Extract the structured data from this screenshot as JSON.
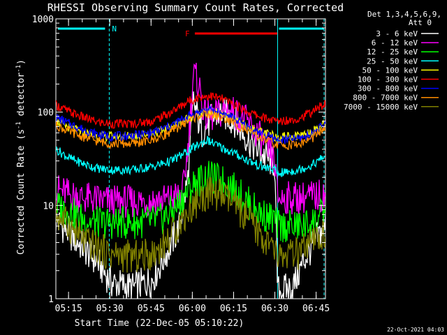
{
  "chart_data": {
    "type": "line",
    "title": "RHESSI Observing Summary Count Rates, Corrected",
    "xlabel": "Start Time (22-Dec-05 05:10:22)",
    "ylabel_main": "Corrected Count Rate (s",
    "ylabel_sup1": "-1",
    "ylabel_mid": " detector",
    "ylabel_sup2": "-1",
    "ylabel_end": ")",
    "y_scale": "log",
    "ylim": [
      1,
      1000
    ],
    "xlim_minutes": [
      0,
      98
    ],
    "x_tick_labels": [
      "05:15",
      "05:30",
      "05:45",
      "06:00",
      "06:15",
      "06:30",
      "06:45"
    ],
    "x_tick_minutes": [
      4.6,
      19.6,
      34.6,
      49.6,
      64.6,
      79.6,
      94.6
    ],
    "y_tick_labels": [
      "1",
      "10",
      "100",
      "1000"
    ],
    "y_tick_values": [
      1,
      10,
      100,
      1000
    ],
    "legend_header": [
      "Det 1,3,4,5,6,9,",
      "Att 0"
    ],
    "legend_placement": "right",
    "annotations": {
      "night_label": "N",
      "flare_label": "F",
      "footer_date": "22-Oct-2021 04:03"
    },
    "night_intervals_minutes": [
      [
        0,
        19.4
      ],
      [
        80.6,
        98
      ]
    ],
    "flare_interval_minutes": [
      50,
      80
    ],
    "series": [
      {
        "name": "3 - 6 keV",
        "color": "#ffffff",
        "points": [
          [
            0,
            7
          ],
          [
            5,
            5
          ],
          [
            10,
            3.5
          ],
          [
            15,
            2.5
          ],
          [
            20,
            1.5
          ],
          [
            28,
            1.3
          ],
          [
            35,
            1.6
          ],
          [
            40,
            3
          ],
          [
            45,
            6
          ],
          [
            48,
            20
          ],
          [
            50,
            130
          ],
          [
            53,
            60
          ],
          [
            56,
            80
          ],
          [
            60,
            100
          ],
          [
            65,
            80
          ],
          [
            70,
            50
          ],
          [
            75,
            35
          ],
          [
            79.5,
            28
          ],
          [
            80.6,
            1.2
          ],
          [
            86,
            1.3
          ],
          [
            90,
            2.5
          ],
          [
            95,
            4.5
          ],
          [
            98,
            6
          ]
        ]
      },
      {
        "name": "6 - 12 keV",
        "color": "#ff00ff",
        "points": [
          [
            0,
            15
          ],
          [
            5,
            13
          ],
          [
            10,
            12
          ],
          [
            20,
            11
          ],
          [
            30,
            11
          ],
          [
            40,
            11.5
          ],
          [
            46,
            13
          ],
          [
            48,
            40
          ],
          [
            50,
            260
          ],
          [
            52,
            200
          ],
          [
            54,
            90
          ],
          [
            58,
            90
          ],
          [
            62,
            110
          ],
          [
            66,
            95
          ],
          [
            70,
            75
          ],
          [
            75,
            50
          ],
          [
            79.5,
            30
          ],
          [
            80.6,
            12
          ],
          [
            88,
            12
          ],
          [
            95,
            12.5
          ],
          [
            98,
            13
          ]
        ]
      },
      {
        "name": "12 - 25 keV",
        "color": "#00ff00",
        "points": [
          [
            0,
            10
          ],
          [
            5,
            8.5
          ],
          [
            10,
            7
          ],
          [
            15,
            6.5
          ],
          [
            20,
            6.5
          ],
          [
            30,
            6.5
          ],
          [
            38,
            7
          ],
          [
            43,
            9
          ],
          [
            47,
            13
          ],
          [
            51,
            18
          ],
          [
            55,
            20
          ],
          [
            59,
            19
          ],
          [
            63,
            17
          ],
          [
            67,
            13
          ],
          [
            71,
            10
          ],
          [
            75,
            8
          ],
          [
            79.5,
            7
          ],
          [
            80.6,
            6
          ],
          [
            90,
            6
          ],
          [
            95,
            7
          ],
          [
            98,
            9
          ]
        ]
      },
      {
        "name": "25 - 50 keV",
        "color": "#00ffff",
        "points": [
          [
            0,
            40
          ],
          [
            5,
            32
          ],
          [
            10,
            28
          ],
          [
            15,
            25
          ],
          [
            20,
            24
          ],
          [
            28,
            24
          ],
          [
            35,
            26
          ],
          [
            42,
            30
          ],
          [
            48,
            38
          ],
          [
            52,
            45
          ],
          [
            55,
            50
          ],
          [
            60,
            42
          ],
          [
            65,
            36
          ],
          [
            70,
            30
          ],
          [
            75,
            26
          ],
          [
            79.5,
            24
          ],
          [
            80.6,
            22
          ],
          [
            88,
            24
          ],
          [
            93,
            27
          ],
          [
            98,
            34
          ]
        ]
      },
      {
        "name": "50 - 100 keV",
        "color": "#ffff00",
        "points": [
          [
            0,
            80
          ],
          [
            5,
            68
          ],
          [
            10,
            60
          ],
          [
            15,
            55
          ],
          [
            20,
            55
          ],
          [
            30,
            56
          ],
          [
            38,
            62
          ],
          [
            44,
            75
          ],
          [
            50,
            92
          ],
          [
            55,
            100
          ],
          [
            60,
            95
          ],
          [
            65,
            82
          ],
          [
            70,
            68
          ],
          [
            75,
            60
          ],
          [
            79.5,
            55
          ],
          [
            80.6,
            55
          ],
          [
            88,
            56
          ],
          [
            93,
            62
          ],
          [
            98,
            75
          ]
        ]
      },
      {
        "name": "100 - 300 keV",
        "color": "#ff0000",
        "points": [
          [
            0,
            120
          ],
          [
            5,
            100
          ],
          [
            10,
            88
          ],
          [
            15,
            78
          ],
          [
            20,
            75
          ],
          [
            28,
            75
          ],
          [
            35,
            80
          ],
          [
            42,
            100
          ],
          [
            48,
            130
          ],
          [
            52,
            145
          ],
          [
            56,
            150
          ],
          [
            60,
            140
          ],
          [
            65,
            120
          ],
          [
            70,
            100
          ],
          [
            75,
            88
          ],
          [
            79.5,
            80
          ],
          [
            80.6,
            80
          ],
          [
            88,
            85
          ],
          [
            93,
            100
          ],
          [
            98,
            125
          ]
        ]
      },
      {
        "name": "300 - 800 keV",
        "color": "#0000ff",
        "points": [
          [
            0,
            88
          ],
          [
            5,
            75
          ],
          [
            10,
            65
          ],
          [
            15,
            58
          ],
          [
            20,
            55
          ],
          [
            28,
            56
          ],
          [
            35,
            60
          ],
          [
            42,
            72
          ],
          [
            48,
            90
          ],
          [
            52,
            100
          ],
          [
            56,
            105
          ],
          [
            60,
            98
          ],
          [
            65,
            85
          ],
          [
            70,
            68
          ],
          [
            75,
            58
          ],
          [
            79.5,
            52
          ],
          [
            80.6,
            50
          ],
          [
            88,
            52
          ],
          [
            93,
            58
          ],
          [
            98,
            75
          ]
        ]
      },
      {
        "name": "800 - 7000 keV",
        "color": "#ff8c00",
        "points": [
          [
            0,
            72
          ],
          [
            5,
            62
          ],
          [
            10,
            54
          ],
          [
            15,
            49
          ],
          [
            20,
            46
          ],
          [
            28,
            46
          ],
          [
            35,
            50
          ],
          [
            42,
            62
          ],
          [
            48,
            80
          ],
          [
            52,
            92
          ],
          [
            56,
            95
          ],
          [
            60,
            88
          ],
          [
            65,
            76
          ],
          [
            70,
            62
          ],
          [
            75,
            52
          ],
          [
            79.5,
            46
          ],
          [
            80.6,
            44
          ],
          [
            88,
            45
          ],
          [
            93,
            52
          ],
          [
            98,
            68
          ]
        ]
      },
      {
        "name": "7000 - 15000 keV",
        "color": "#808000",
        "points": [
          [
            0,
            8
          ],
          [
            5,
            6
          ],
          [
            10,
            4.2
          ],
          [
            15,
            3.5
          ],
          [
            20,
            3
          ],
          [
            28,
            2.8
          ],
          [
            35,
            3
          ],
          [
            40,
            4
          ],
          [
            45,
            6.5
          ],
          [
            50,
            10
          ],
          [
            55,
            13.5
          ],
          [
            60,
            13
          ],
          [
            65,
            10
          ],
          [
            70,
            7
          ],
          [
            75,
            4.5
          ],
          [
            79.5,
            3.2
          ],
          [
            80.6,
            2.8
          ],
          [
            88,
            3
          ],
          [
            93,
            3.8
          ],
          [
            98,
            5
          ]
        ]
      }
    ]
  }
}
